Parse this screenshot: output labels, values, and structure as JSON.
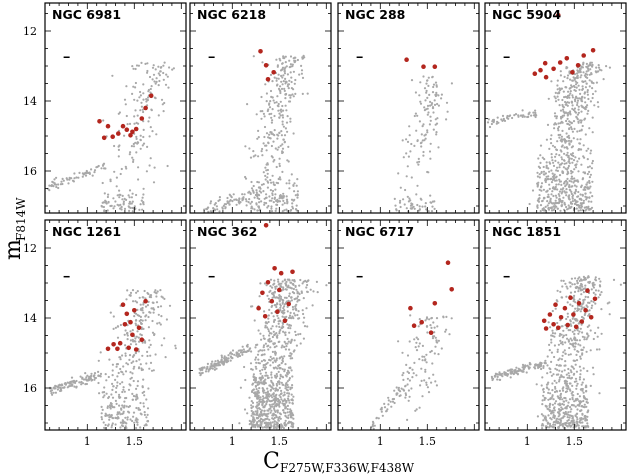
{
  "colors": {
    "field_stars": "#a8a8a8",
    "target_stars": "#b3261e",
    "axes": "#000000"
  },
  "chart_data": {
    "type": "scatter",
    "layout": "2x4 panel grid",
    "xlabel": "C",
    "xlabel_subscript": "F275W,F336W,F438W",
    "ylabel": "m",
    "ylabel_subscript": "F814W",
    "xlim": [
      0.55,
      2.05
    ],
    "ylim": [
      17.2,
      11.2
    ],
    "y_inverted": true,
    "xticks": [
      1,
      1.5
    ],
    "xtick_labels": [
      "1",
      "1.5"
    ],
    "yticks": [
      12,
      14,
      16
    ],
    "ytick_labels": [
      "12",
      "14",
      "16"
    ],
    "panels": [
      {
        "cluster": "NGC 6981",
        "errorbar": {
          "x": 0.78,
          "y": 12.75
        },
        "highlighted": [
          {
            "x": 1.13,
            "y": 14.58
          },
          {
            "x": 1.18,
            "y": 15.05
          },
          {
            "x": 1.22,
            "y": 14.72
          },
          {
            "x": 1.27,
            "y": 15.02
          },
          {
            "x": 1.33,
            "y": 14.93
          },
          {
            "x": 1.38,
            "y": 14.72
          },
          {
            "x": 1.42,
            "y": 14.82
          },
          {
            "x": 1.46,
            "y": 14.98
          },
          {
            "x": 1.48,
            "y": 14.88
          },
          {
            "x": 1.52,
            "y": 14.8
          },
          {
            "x": 1.58,
            "y": 14.5
          },
          {
            "x": 1.62,
            "y": 14.2
          },
          {
            "x": 1.68,
            "y": 13.85
          }
        ],
        "field_regions": [
          {
            "kind": "hb",
            "x": [
              0.58,
              1.18
            ],
            "y": [
              16.45,
              15.9
            ],
            "n": 60,
            "spread": 0.07
          },
          {
            "kind": "rgb",
            "x": [
              1.35,
              1.72
            ],
            "y": [
              17.1,
              12.9
            ],
            "n": 160,
            "spread": 0.12
          },
          {
            "kind": "blob",
            "x": [
              1.15,
              1.6
            ],
            "y": [
              16.4,
              17.15
            ],
            "n": 70
          }
        ]
      },
      {
        "cluster": "NGC 6218",
        "errorbar": {
          "x": 0.78,
          "y": 12.75
        },
        "highlighted": [
          {
            "x": 1.3,
            "y": 12.58
          },
          {
            "x": 1.36,
            "y": 12.98
          },
          {
            "x": 1.38,
            "y": 13.38
          },
          {
            "x": 1.44,
            "y": 13.18
          }
        ],
        "field_regions": [
          {
            "kind": "rgb",
            "x": [
              1.3,
              1.62
            ],
            "y": [
              17.1,
              12.7
            ],
            "n": 260,
            "spread": 0.11
          },
          {
            "kind": "tail",
            "x": [
              0.7,
              1.3
            ],
            "y": [
              17.15,
              16.6
            ],
            "n": 90
          },
          {
            "kind": "blob",
            "x": [
              1.2,
              1.7
            ],
            "y": [
              15.9,
              17.15
            ],
            "n": 120
          }
        ]
      },
      {
        "cluster": "NGC 288",
        "errorbar": {
          "x": 0.78,
          "y": 12.75
        },
        "highlighted": [
          {
            "x": 1.28,
            "y": 12.82
          },
          {
            "x": 1.46,
            "y": 13.02
          },
          {
            "x": 1.58,
            "y": 13.02
          }
        ],
        "field_regions": [
          {
            "kind": "rgb",
            "x": [
              1.3,
              1.58
            ],
            "y": [
              17.1,
              13.3
            ],
            "n": 120,
            "spread": 0.1
          },
          {
            "kind": "blob",
            "x": [
              1.15,
              1.6
            ],
            "y": [
              16.6,
              17.15
            ],
            "n": 40
          }
        ]
      },
      {
        "cluster": "NGC 5904",
        "errorbar": {
          "x": 0.78,
          "y": 12.75
        },
        "highlighted": [
          {
            "x": 1.08,
            "y": 13.22
          },
          {
            "x": 1.14,
            "y": 13.12
          },
          {
            "x": 1.19,
            "y": 12.92
          },
          {
            "x": 1.2,
            "y": 13.32
          },
          {
            "x": 1.28,
            "y": 13.08
          },
          {
            "x": 1.35,
            "y": 12.9
          },
          {
            "x": 1.42,
            "y": 12.78
          },
          {
            "x": 1.48,
            "y": 13.18
          },
          {
            "x": 1.54,
            "y": 12.98
          },
          {
            "x": 1.6,
            "y": 12.7
          },
          {
            "x": 1.7,
            "y": 12.55
          },
          {
            "x": 1.33,
            "y": 11.55
          }
        ],
        "field_regions": [
          {
            "kind": "hb",
            "x": [
              0.58,
              1.1
            ],
            "y": [
              14.6,
              14.35
            ],
            "n": 50,
            "spread": 0.06
          },
          {
            "kind": "rgb",
            "x": [
              1.3,
              1.58
            ],
            "y": [
              17.15,
              12.9
            ],
            "n": 420,
            "spread": 0.12
          },
          {
            "kind": "blob",
            "x": [
              1.1,
              1.7
            ],
            "y": [
              15.2,
              17.15
            ],
            "n": 340
          }
        ]
      },
      {
        "cluster": "NGC 1261",
        "errorbar": {
          "x": 0.78,
          "y": 12.82
        },
        "highlighted": [
          {
            "x": 1.22,
            "y": 14.88
          },
          {
            "x": 1.28,
            "y": 14.75
          },
          {
            "x": 1.32,
            "y": 14.88
          },
          {
            "x": 1.35,
            "y": 14.72
          },
          {
            "x": 1.38,
            "y": 13.62
          },
          {
            "x": 1.4,
            "y": 14.18
          },
          {
            "x": 1.42,
            "y": 13.88
          },
          {
            "x": 1.44,
            "y": 14.85
          },
          {
            "x": 1.46,
            "y": 14.12
          },
          {
            "x": 1.48,
            "y": 14.48
          },
          {
            "x": 1.5,
            "y": 13.78
          },
          {
            "x": 1.52,
            "y": 14.9
          },
          {
            "x": 1.55,
            "y": 14.28
          },
          {
            "x": 1.58,
            "y": 14.62
          },
          {
            "x": 1.62,
            "y": 13.52
          }
        ],
        "field_regions": [
          {
            "kind": "hb",
            "x": [
              0.6,
              1.15
            ],
            "y": [
              16.05,
              15.65
            ],
            "n": 110,
            "spread": 0.06
          },
          {
            "kind": "rgb",
            "x": [
              1.3,
              1.65
            ],
            "y": [
              17.15,
              13.2
            ],
            "n": 240,
            "spread": 0.13
          },
          {
            "kind": "blob",
            "x": [
              1.15,
              1.65
            ],
            "y": [
              15.6,
              17.15
            ],
            "n": 150
          }
        ]
      },
      {
        "cluster": "NGC 362",
        "errorbar": {
          "x": 0.78,
          "y": 12.82
        },
        "highlighted": [
          {
            "x": 1.28,
            "y": 13.72
          },
          {
            "x": 1.32,
            "y": 13.28
          },
          {
            "x": 1.35,
            "y": 13.95
          },
          {
            "x": 1.38,
            "y": 12.98
          },
          {
            "x": 1.42,
            "y": 13.52
          },
          {
            "x": 1.45,
            "y": 12.58
          },
          {
            "x": 1.48,
            "y": 13.82
          },
          {
            "x": 1.5,
            "y": 13.2
          },
          {
            "x": 1.52,
            "y": 12.72
          },
          {
            "x": 1.56,
            "y": 14.08
          },
          {
            "x": 1.6,
            "y": 13.6
          },
          {
            "x": 1.64,
            "y": 12.68
          },
          {
            "x": 1.36,
            "y": 11.35
          }
        ],
        "field_regions": [
          {
            "kind": "hb",
            "x": [
              0.65,
              1.2
            ],
            "y": [
              15.55,
              14.85
            ],
            "n": 130,
            "spread": 0.06
          },
          {
            "kind": "rgb",
            "x": [
              1.3,
              1.6
            ],
            "y": [
              17.15,
              12.9
            ],
            "n": 460,
            "spread": 0.13
          },
          {
            "kind": "blob",
            "x": [
              1.2,
              1.65
            ],
            "y": [
              15.0,
              17.15
            ],
            "n": 460
          }
        ]
      },
      {
        "cluster": "NGC 6717",
        "errorbar": {
          "x": 0.78,
          "y": 12.82
        },
        "highlighted": [
          {
            "x": 1.32,
            "y": 13.72
          },
          {
            "x": 1.36,
            "y": 14.22
          },
          {
            "x": 1.44,
            "y": 14.12
          },
          {
            "x": 1.54,
            "y": 14.42
          },
          {
            "x": 1.58,
            "y": 13.58
          },
          {
            "x": 1.72,
            "y": 12.42
          },
          {
            "x": 1.76,
            "y": 13.18
          }
        ],
        "field_regions": [
          {
            "kind": "rgb",
            "x": [
              1.28,
              1.55
            ],
            "y": [
              17.15,
              13.9
            ],
            "n": 110,
            "spread": 0.12
          },
          {
            "kind": "tail",
            "x": [
              0.9,
              1.3
            ],
            "y": [
              17.1,
              15.8
            ],
            "n": 45
          }
        ]
      },
      {
        "cluster": "NGC 1851",
        "errorbar": {
          "x": 0.78,
          "y": 12.82
        },
        "highlighted": [
          {
            "x": 1.18,
            "y": 14.08
          },
          {
            "x": 1.2,
            "y": 14.3
          },
          {
            "x": 1.24,
            "y": 13.9
          },
          {
            "x": 1.28,
            "y": 14.18
          },
          {
            "x": 1.3,
            "y": 13.62
          },
          {
            "x": 1.33,
            "y": 14.28
          },
          {
            "x": 1.36,
            "y": 13.98
          },
          {
            "x": 1.4,
            "y": 13.72
          },
          {
            "x": 1.43,
            "y": 14.2
          },
          {
            "x": 1.46,
            "y": 13.42
          },
          {
            "x": 1.49,
            "y": 13.9
          },
          {
            "x": 1.52,
            "y": 14.25
          },
          {
            "x": 1.55,
            "y": 13.58
          },
          {
            "x": 1.58,
            "y": 14.1
          },
          {
            "x": 1.62,
            "y": 13.78
          },
          {
            "x": 1.64,
            "y": 13.22
          },
          {
            "x": 1.68,
            "y": 13.98
          },
          {
            "x": 1.72,
            "y": 13.45
          }
        ],
        "field_regions": [
          {
            "kind": "hb",
            "x": [
              0.62,
              1.2
            ],
            "y": [
              15.7,
              15.3
            ],
            "n": 120,
            "spread": 0.06
          },
          {
            "kind": "rgb",
            "x": [
              1.3,
              1.62
            ],
            "y": [
              17.15,
              12.8
            ],
            "n": 380,
            "spread": 0.13
          },
          {
            "kind": "blob",
            "x": [
              1.15,
              1.65
            ],
            "y": [
              15.4,
              17.15
            ],
            "n": 330
          }
        ]
      }
    ]
  }
}
